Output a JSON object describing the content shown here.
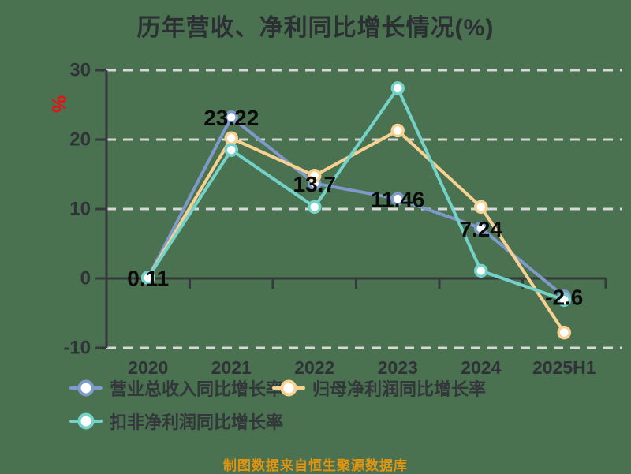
{
  "page": {
    "background_color": "#4a7150"
  },
  "chart": {
    "title": "历年营收、净利同比增长情况(%)",
    "y_unit": "%",
    "y_unit_color": "#e31414",
    "footer": "制图数据来自恒生聚源数据库",
    "footer_color": "#e2940f"
  },
  "chart_data": {
    "type": "line",
    "title": "历年营收、净利同比增长情况(%)",
    "categories": [
      "2020",
      "2021",
      "2022",
      "2023",
      "2024",
      "2025H1"
    ],
    "series": [
      {
        "name": "营业总收入同比增长率",
        "color": "#7e9aca",
        "values": [
          0.11,
          23.22,
          13.7,
          11.46,
          7.24,
          -2.6
        ],
        "labels": [
          "0.11",
          "23.22",
          "13.7",
          "11.46",
          "7.24",
          "-2.6"
        ],
        "show_labels": true
      },
      {
        "name": "归母净利润同比增长率",
        "color": "#f7d191",
        "values": [
          0.11,
          20.2,
          14.8,
          21.3,
          10.3,
          -7.8
        ],
        "show_labels": false
      },
      {
        "name": "扣非净利润同比增长率",
        "color": "#74d2c9",
        "values": [
          0.11,
          18.5,
          10.3,
          27.4,
          1.1,
          -3.1
        ],
        "show_labels": false
      }
    ],
    "ylim": [
      -10,
      30
    ],
    "yticks": [
      30,
      20,
      10,
      0,
      -10
    ],
    "ylabel": "%",
    "xlabel": "",
    "grid": "dashed-horizontal",
    "legend_position": "bottom-left",
    "marker_style": "circle-white-fill"
  },
  "legend": {
    "items": [
      {
        "label": "营业总收入同比增长率",
        "color": "#7e9aca"
      },
      {
        "label": "归母净利润同比增长率",
        "color": "#f7d191"
      },
      {
        "label": "扣非净利润同比增长率",
        "color": "#74d2c9"
      }
    ]
  }
}
